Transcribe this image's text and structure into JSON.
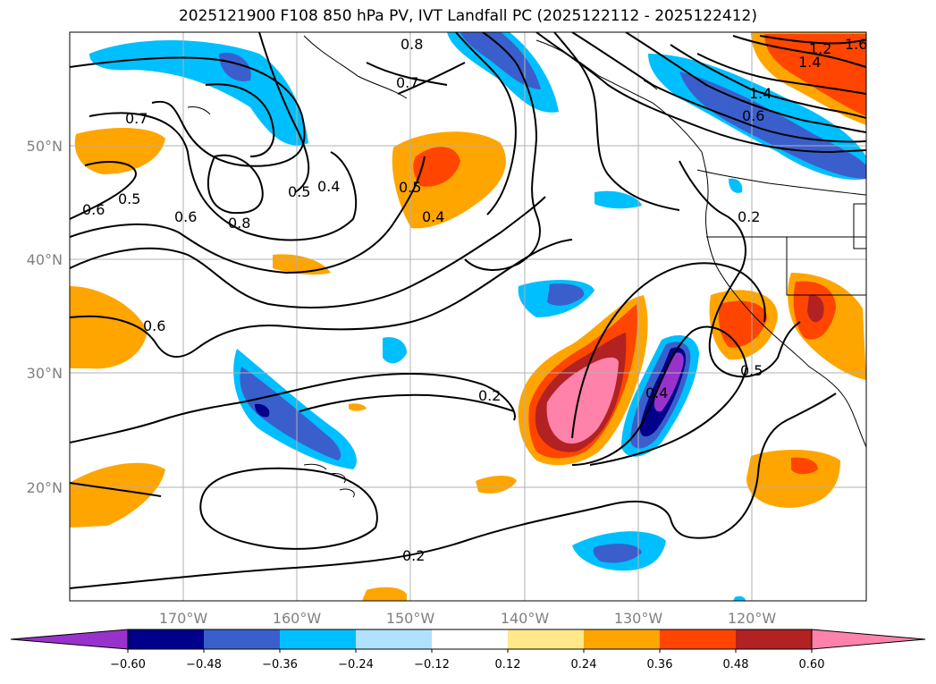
{
  "title": "2025121900 F108 850 hPa PV, IVT Landfall PC (2025122112 - 2025122412)",
  "latitude_labels": [
    "50°N",
    "40°N",
    "30°N",
    "20°N"
  ],
  "longitude_labels": [
    "170°W",
    "160°W",
    "150°W",
    "140°W",
    "130°W",
    "120°W"
  ],
  "colorbar": {
    "tick_labels": [
      "−0.60",
      "−0.48",
      "−0.36",
      "−0.24",
      "−0.12",
      "0.12",
      "0.24",
      "0.36",
      "0.48",
      "0.60"
    ],
    "colors": [
      "#9932cc",
      "#00008b",
      "#3a5fcd",
      "#00bfff",
      "#b0e2ff",
      "#ffffff",
      "#ffe88a",
      "#ffa500",
      "#ff4500",
      "#b22222",
      "#ff82ab"
    ]
  },
  "contour_labels": [
    "0.8",
    "0.7",
    "0.7",
    "0.6",
    "0.5",
    "0.6",
    "0.8",
    "0.5",
    "0.4",
    "0.5",
    "0.4",
    "0.6",
    "0.2",
    "0.2",
    "0.4",
    "0.5",
    "0.2",
    "1.2",
    "1.4",
    "1.4",
    "0.6",
    "1.6"
  ]
}
